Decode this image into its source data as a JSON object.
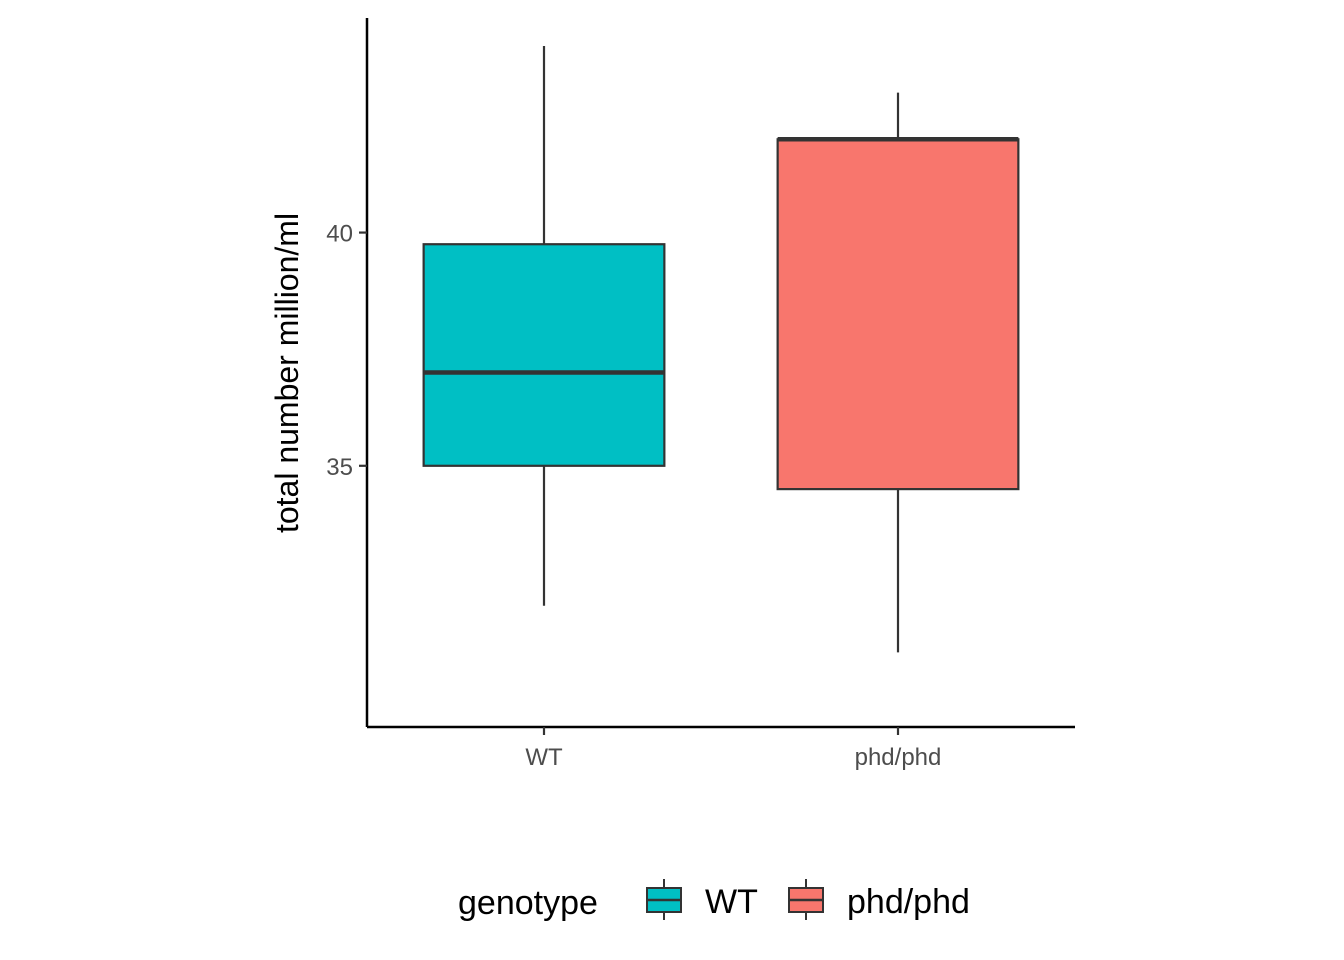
{
  "chart_data": {
    "type": "boxplot",
    "title": "",
    "xlabel": "",
    "ylabel": "total number million/ml",
    "ylim": [
      29.4,
      44.6
    ],
    "yticks": [
      35,
      40
    ],
    "categories": [
      "WT",
      "phd/phd"
    ],
    "boxes": [
      {
        "category": "WT",
        "min": 32.0,
        "q1": 35.0,
        "median": 37.0,
        "q3": 39.75,
        "max": 44.0,
        "fill": "#00BFC4"
      },
      {
        "category": "phd/phd",
        "min": 31.0,
        "q1": 34.5,
        "median": 42.0,
        "q3": 42.0,
        "max": 43.0,
        "fill": "#F8766D"
      }
    ],
    "grid": false,
    "legend": {
      "position": "bottom",
      "title": "genotype",
      "items": [
        {
          "label": "WT",
          "color": "#00BFC4"
        },
        {
          "label": "phd/phd",
          "color": "#F8766D"
        }
      ]
    }
  }
}
